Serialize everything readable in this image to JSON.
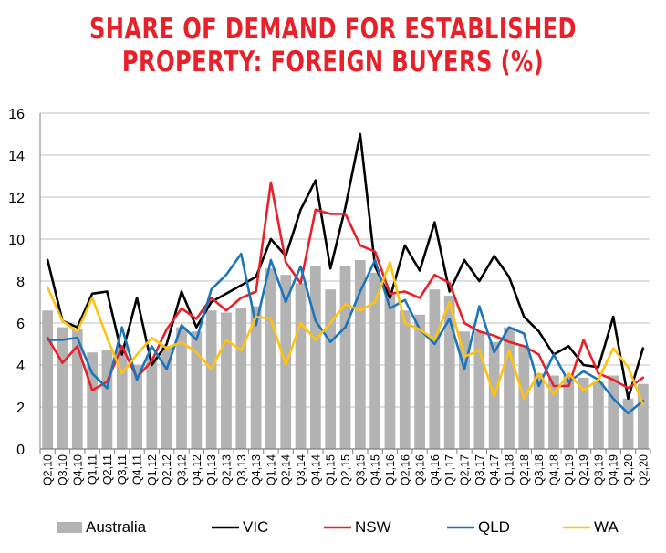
{
  "chart_data": {
    "type": "bar+line",
    "title_lines": [
      "SHARE OF DEMAND FOR ESTABLISHED",
      "PROPERTY: FOREIGN BUYERS (%)"
    ],
    "xlabel": "",
    "ylabel": "",
    "ylim": [
      0,
      16
    ],
    "yticks": [
      "0",
      "2",
      "4",
      "6",
      "8",
      "10",
      "12",
      "14",
      "16"
    ],
    "grid": true,
    "legend_position": "bottom",
    "categories": [
      "Q2,10",
      "Q3,10",
      "Q4,10",
      "Q1,11",
      "Q2,11",
      "Q3,11",
      "Q4,11",
      "Q1,12",
      "Q2,12",
      "Q3,12",
      "Q4,12",
      "Q1,13",
      "Q2,13",
      "Q3,13",
      "Q4,13",
      "Q1,14",
      "Q2,14",
      "Q3,14",
      "Q4,14",
      "Q1,15",
      "Q2,15",
      "Q3,15",
      "Q4,15",
      "Q1,16",
      "Q2,16",
      "Q3,16",
      "Q4,16",
      "Q1,17",
      "Q2,17",
      "Q3,17",
      "Q4,17",
      "Q1,18",
      "Q2,18",
      "Q3,18",
      "Q4,18",
      "Q1,19",
      "Q2,19",
      "Q3,19",
      "Q4,19",
      "Q1,20",
      "Q2,20"
    ],
    "bar_series": {
      "name": "Australia",
      "color": "#b3b3b3",
      "values": [
        6.6,
        5.8,
        5.7,
        4.6,
        4.7,
        4.9,
        4.0,
        4.4,
        4.9,
        5.8,
        5.6,
        6.6,
        6.5,
        6.7,
        6.8,
        8.6,
        8.3,
        7.9,
        8.7,
        7.6,
        8.7,
        9.0,
        8.4,
        7.5,
        6.6,
        6.4,
        7.6,
        7.3,
        5.6,
        5.6,
        5.1,
        5.8,
        4.9,
        3.6,
        3.5,
        3.5,
        3.4,
        3.2,
        3.5,
        2.4,
        3.1
      ]
    },
    "series": [
      {
        "name": "VIC",
        "color": "#000000",
        "values": [
          9.0,
          6.1,
          5.8,
          7.4,
          7.5,
          4.5,
          7.2,
          4.0,
          5.0,
          7.5,
          5.8,
          7.0,
          7.4,
          7.8,
          8.2,
          10.0,
          9.2,
          11.4,
          12.8,
          8.6,
          11.5,
          15.0,
          8.7,
          7.2,
          9.7,
          8.5,
          10.8,
          7.5,
          9.0,
          8.0,
          9.2,
          8.2,
          6.3,
          5.6,
          4.5,
          4.9,
          4.0,
          3.9,
          6.3,
          2.4,
          4.8
        ]
      },
      {
        "name": "NSW",
        "color": "#e8202a",
        "values": [
          5.3,
          4.1,
          4.9,
          2.8,
          3.2,
          4.9,
          3.4,
          4.2,
          5.7,
          6.7,
          6.2,
          7.2,
          6.6,
          7.2,
          7.5,
          12.7,
          8.9,
          7.9,
          11.4,
          11.2,
          11.2,
          9.7,
          9.4,
          7.4,
          7.5,
          7.2,
          8.3,
          7.9,
          6.0,
          5.6,
          5.4,
          5.1,
          4.9,
          4.5,
          3.0,
          3.0,
          5.2,
          3.6,
          3.3,
          2.9,
          3.4
        ]
      },
      {
        "name": "QLD",
        "color": "#1b75bc",
        "values": [
          5.2,
          5.2,
          5.3,
          3.6,
          2.9,
          5.8,
          3.3,
          4.9,
          3.8,
          5.9,
          5.2,
          7.6,
          8.3,
          9.3,
          5.9,
          9.0,
          7.0,
          8.7,
          6.1,
          5.1,
          5.8,
          7.5,
          9.0,
          6.7,
          7.1,
          5.7,
          5.0,
          6.2,
          3.8,
          6.8,
          4.6,
          5.8,
          5.5,
          3.0,
          4.5,
          3.2,
          3.7,
          3.3,
          2.4,
          1.7,
          2.3
        ]
      },
      {
        "name": "WA",
        "color": "#ffc20e",
        "values": [
          7.7,
          6.1,
          5.6,
          7.2,
          5.3,
          3.6,
          4.5,
          5.3,
          4.8,
          5.1,
          4.6,
          3.8,
          5.2,
          4.7,
          6.3,
          6.2,
          4.0,
          6.0,
          5.2,
          6.0,
          6.9,
          6.6,
          7.0,
          8.9,
          6.0,
          5.7,
          5.2,
          7.0,
          4.4,
          4.7,
          2.5,
          4.7,
          2.4,
          3.6,
          2.6,
          3.6,
          2.8,
          3.3,
          4.8,
          3.9,
          2.1
        ]
      }
    ]
  }
}
